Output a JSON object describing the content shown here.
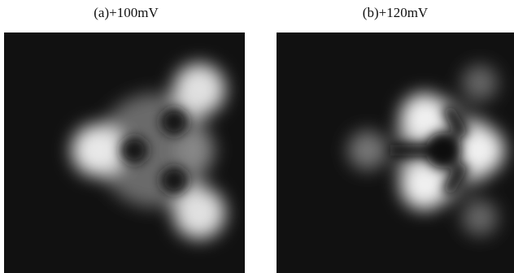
{
  "panels": [
    {
      "label": "(a)+100mV"
    },
    {
      "label": "(b)+120mV"
    }
  ]
}
